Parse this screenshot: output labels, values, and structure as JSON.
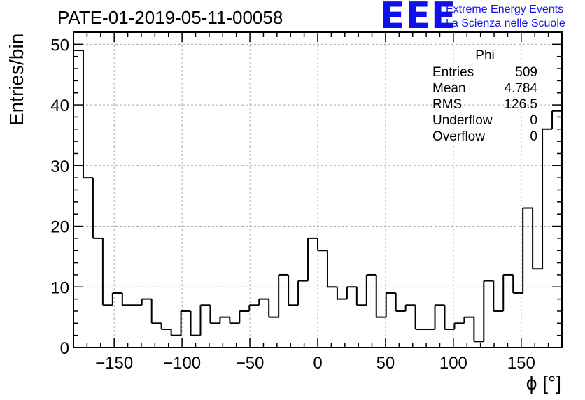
{
  "header": {
    "title": "PATE-01-2019-05-11-00058",
    "logo_mark": "EEE",
    "logo_line1": "Extreme Energy Events",
    "logo_line2": "La Scienza nelle Scuole",
    "logo_color": "#1010ee"
  },
  "stats_box": {
    "title": "Phi",
    "rows": [
      {
        "label": "Entries",
        "value": "509"
      },
      {
        "label": "Mean",
        "value": "4.784"
      },
      {
        "label": "RMS",
        "value": "126.5"
      },
      {
        "label": "Underflow",
        "value": "0"
      },
      {
        "label": "Overflow",
        "value": "0"
      }
    ]
  },
  "chart_data": {
    "type": "bar",
    "style": "step-histogram",
    "title": "PATE-01-2019-05-11-00058",
    "xlabel": "ϕ [°]",
    "ylabel": "Entries/bin",
    "xlim": [
      -180,
      180
    ],
    "ylim": [
      0,
      52
    ],
    "bin_width": 7.2,
    "x_ticks": [
      -150,
      -100,
      -50,
      0,
      50,
      100,
      150
    ],
    "x_tick_labels": [
      "−150",
      "−100",
      "−50",
      "0",
      "50",
      "100",
      "150"
    ],
    "y_ticks": [
      0,
      10,
      20,
      30,
      40,
      50
    ],
    "y_tick_labels": [
      "0",
      "10",
      "20",
      "30",
      "40",
      "50"
    ],
    "grid": true,
    "line_color": "#000000",
    "values": [
      49,
      28,
      18,
      7,
      9,
      7,
      7,
      8,
      4,
      3,
      2,
      6,
      2,
      7,
      4,
      5,
      4,
      6,
      7,
      8,
      5,
      12,
      7,
      11,
      18,
      16,
      10,
      8,
      10,
      7,
      12,
      5,
      9,
      6,
      7,
      3,
      3,
      7,
      3,
      4,
      5,
      1,
      11,
      6,
      12,
      9,
      23,
      13,
      36,
      39
    ]
  }
}
